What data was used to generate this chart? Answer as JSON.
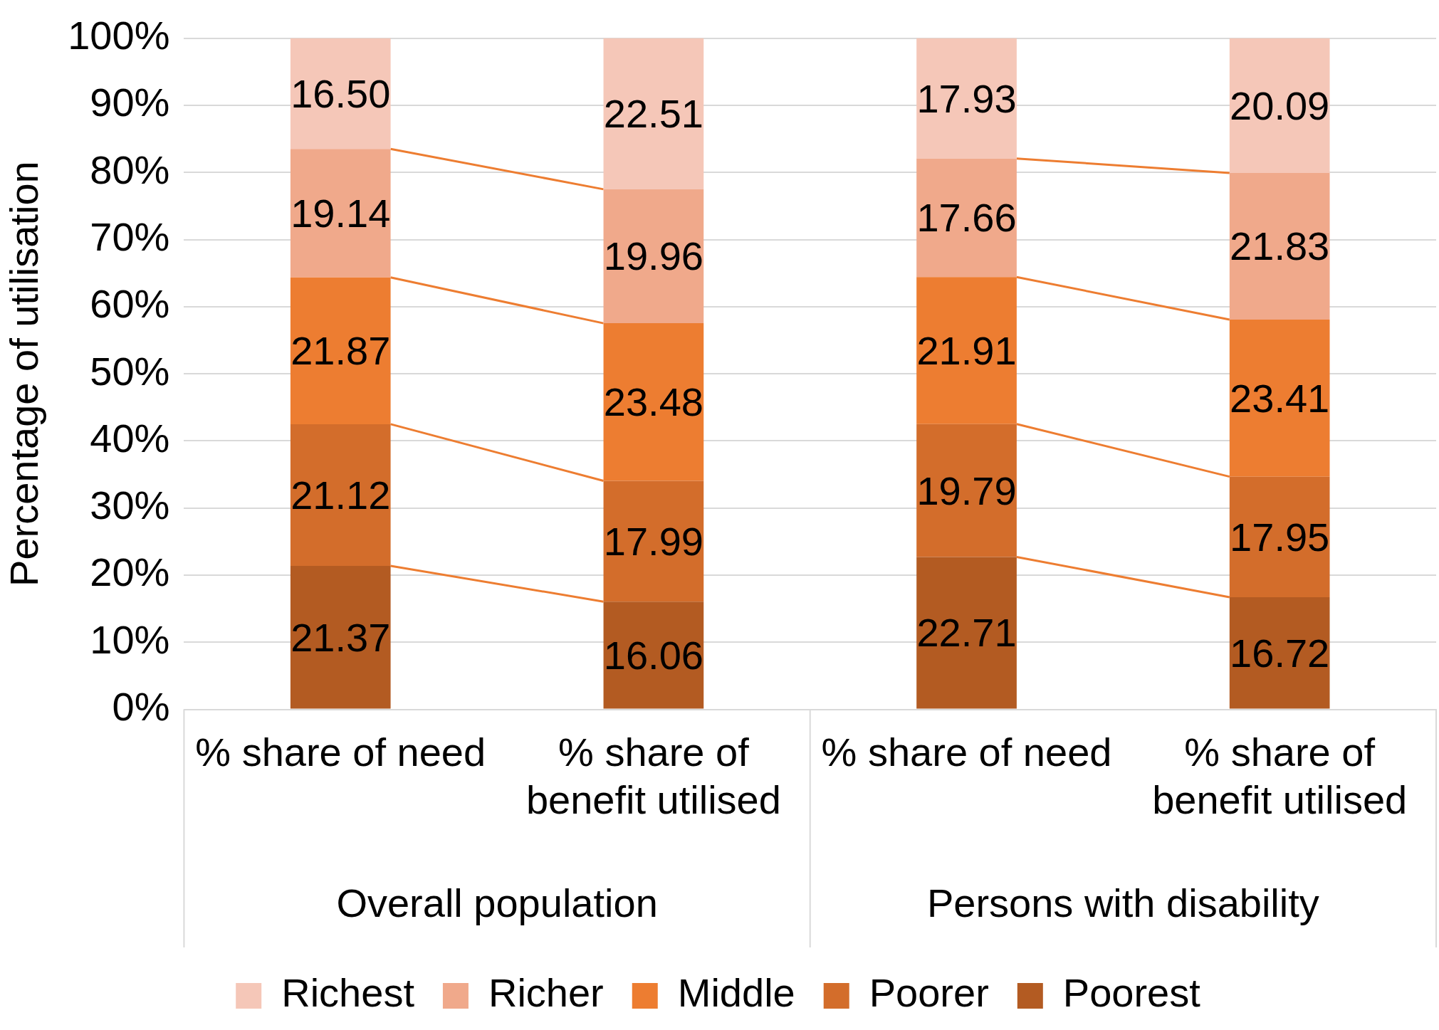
{
  "chart_data": {
    "type": "bar",
    "stacked": true,
    "ylabel": "Percentage of utilisation",
    "categories": [
      "% share of need",
      "% share of benefit utilised",
      "% share of need",
      "% share of benefit utilised"
    ],
    "annotations": [
      "Overall population",
      "Persons with disability"
    ],
    "series": [
      {
        "name": "Poorest",
        "color": "#b35b22",
        "values": [
          21.37,
          16.06,
          22.71,
          16.72
        ],
        "value_labels": [
          "21.37",
          "16.06",
          "22.71",
          "16.72"
        ]
      },
      {
        "name": "Poorer",
        "color": "#d36d2b",
        "values": [
          21.12,
          17.99,
          19.79,
          17.95
        ],
        "value_labels": [
          "21.12",
          "17.99",
          "19.79",
          "17.95"
        ]
      },
      {
        "name": "Middle",
        "color": "#ed7d31",
        "values": [
          21.87,
          23.48,
          21.91,
          23.41
        ],
        "value_labels": [
          "21.87",
          "23.48",
          "21.91",
          "23.41"
        ]
      },
      {
        "name": "Richer",
        "color": "#f0a98b",
        "values": [
          19.14,
          19.96,
          17.66,
          21.83
        ],
        "value_labels": [
          "19.14",
          "19.96",
          "17.66",
          "21.83"
        ]
      },
      {
        "name": "Richest",
        "color": "#f5c7b8",
        "values": [
          16.5,
          22.51,
          17.93,
          20.09
        ],
        "value_labels": [
          "16.50",
          "22.51",
          "17.93",
          "20.09"
        ]
      }
    ],
    "ylim": [
      0,
      100
    ],
    "yticks": [
      {
        "value": 0,
        "label": "0%"
      },
      {
        "value": 10,
        "label": "10%"
      },
      {
        "value": 20,
        "label": "20%"
      },
      {
        "value": 30,
        "label": "30%"
      },
      {
        "value": 40,
        "label": "40%"
      },
      {
        "value": 50,
        "label": "50%"
      },
      {
        "value": 60,
        "label": "60%"
      },
      {
        "value": 70,
        "label": "70%"
      },
      {
        "value": 80,
        "label": "80%"
      },
      {
        "value": 90,
        "label": "90%"
      },
      {
        "value": 100,
        "label": "100%"
      }
    ],
    "grid": "y",
    "legend": "bottom"
  }
}
